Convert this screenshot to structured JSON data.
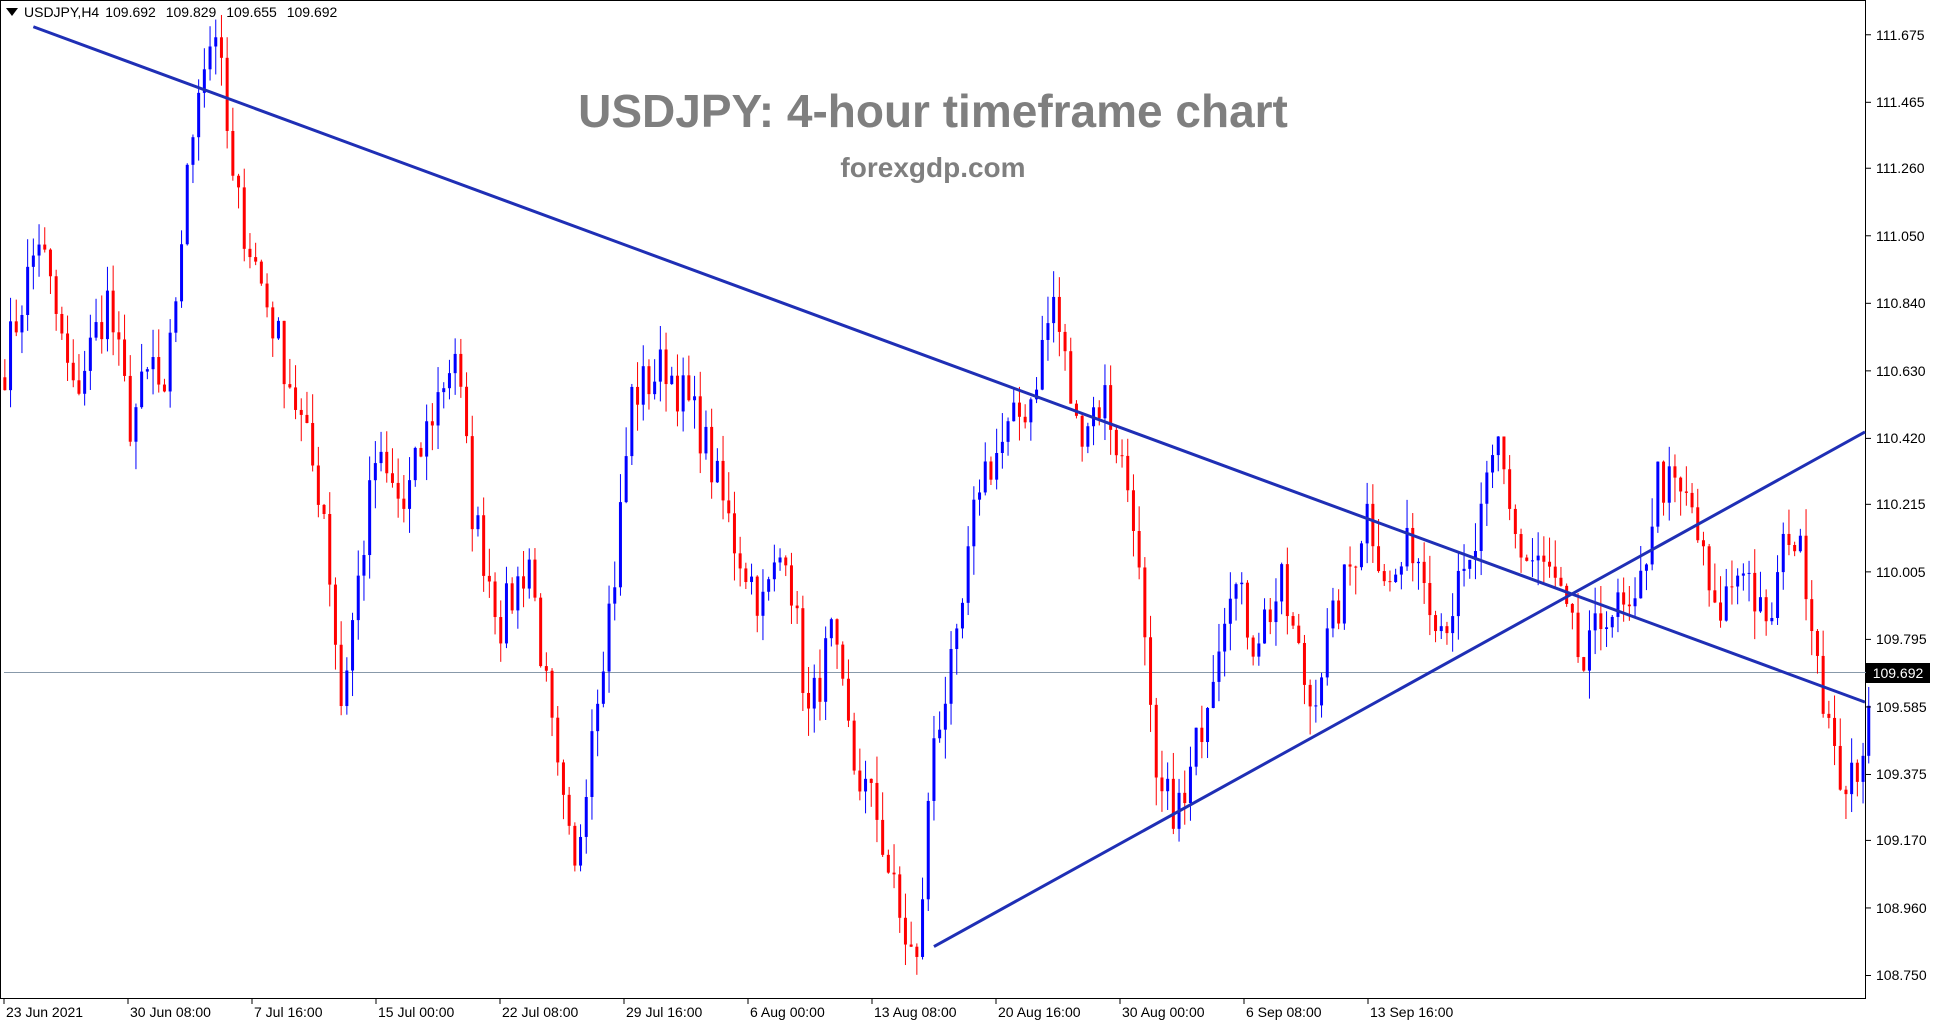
{
  "header": {
    "symbol": "USDJPY,H4",
    "quotes": [
      "109.692",
      "109.829",
      "109.655",
      "109.692"
    ]
  },
  "chart_data": {
    "type": "candlestick",
    "title": "USDJPY: 4-hour timeframe chart",
    "subtitle": "forexgdp.com",
    "y_ticks": [
      "111.675",
      "111.465",
      "111.260",
      "111.050",
      "110.840",
      "110.630",
      "110.420",
      "110.215",
      "110.005",
      "109.795",
      "109.585",
      "109.375",
      "109.170",
      "108.960",
      "108.750"
    ],
    "ylim": [
      108.68,
      111.78
    ],
    "x_ticks": [
      "23 Jun 2021",
      "30 Jun 08:00",
      "7 Jul 16:00",
      "15 Jul 00:00",
      "22 Jul 08:00",
      "29 Jul 16:00",
      "6 Aug 00:00",
      "13 Aug 08:00",
      "20 Aug 16:00",
      "30 Aug 00:00",
      "6 Sep 08:00",
      "13 Sep 16:00"
    ],
    "current_price": "109.692",
    "colors": {
      "up": "#0000ff",
      "down": "#ff0000",
      "trendline": "#1f2fb5",
      "price_line": "#8899aa"
    },
    "trendlines": [
      {
        "name": "descending-resistance",
        "from": [
          5,
          111.7
        ],
        "to": [
          410,
          109.6
        ]
      },
      {
        "name": "ascending-support",
        "from": [
          163,
          108.84
        ],
        "to": [
          410,
          110.44
        ]
      }
    ],
    "keypoints": [
      [
        0,
        110.65
      ],
      [
        6,
        111.05
      ],
      [
        12,
        110.55
      ],
      [
        18,
        110.85
      ],
      [
        22,
        110.47
      ],
      [
        26,
        110.65
      ],
      [
        28,
        110.5
      ],
      [
        31,
        111.05
      ],
      [
        34,
        111.55
      ],
      [
        37,
        111.7
      ],
      [
        40,
        111.2
      ],
      [
        45,
        110.9
      ],
      [
        50,
        110.6
      ],
      [
        56,
        110.2
      ],
      [
        59,
        109.6
      ],
      [
        65,
        110.35
      ],
      [
        70,
        110.2
      ],
      [
        75,
        110.5
      ],
      [
        79,
        110.7
      ],
      [
        82,
        110.2
      ],
      [
        87,
        109.85
      ],
      [
        92,
        110.05
      ],
      [
        97,
        109.35
      ],
      [
        100,
        109.05
      ],
      [
        103,
        109.55
      ],
      [
        107,
        110.0
      ],
      [
        110,
        110.55
      ],
      [
        116,
        110.65
      ],
      [
        122,
        110.45
      ],
      [
        128,
        110.1
      ],
      [
        133,
        109.9
      ],
      [
        137,
        110.1
      ],
      [
        141,
        109.55
      ],
      [
        145,
        109.8
      ],
      [
        149,
        109.4
      ],
      [
        153,
        109.25
      ],
      [
        157,
        108.92
      ],
      [
        160,
        108.77
      ],
      [
        163,
        109.5
      ],
      [
        167,
        109.75
      ],
      [
        171,
        110.3
      ],
      [
        175,
        110.4
      ],
      [
        180,
        110.55
      ],
      [
        184,
        110.85
      ],
      [
        188,
        110.45
      ],
      [
        193,
        110.55
      ],
      [
        198,
        110.2
      ],
      [
        202,
        109.3
      ],
      [
        207,
        109.27
      ],
      [
        210,
        109.55
      ],
      [
        215,
        110.0
      ],
      [
        219,
        109.8
      ],
      [
        224,
        109.95
      ],
      [
        229,
        109.6
      ],
      [
        234,
        109.9
      ],
      [
        239,
        110.2
      ],
      [
        243,
        109.95
      ],
      [
        247,
        110.1
      ],
      [
        252,
        109.85
      ],
      [
        257,
        110.0
      ],
      [
        262,
        110.4
      ],
      [
        266,
        110.05
      ],
      [
        271,
        110.0
      ],
      [
        277,
        109.7
      ],
      [
        281,
        109.9
      ],
      [
        286,
        109.85
      ],
      [
        290,
        110.3
      ],
      [
        296,
        110.2
      ],
      [
        300,
        109.85
      ],
      [
        305,
        110.05
      ],
      [
        309,
        109.8
      ],
      [
        313,
        110.15
      ],
      [
        316,
        110.0
      ],
      [
        321,
        109.4
      ],
      [
        325,
        109.32
      ],
      [
        327,
        109.65
      ]
    ]
  }
}
